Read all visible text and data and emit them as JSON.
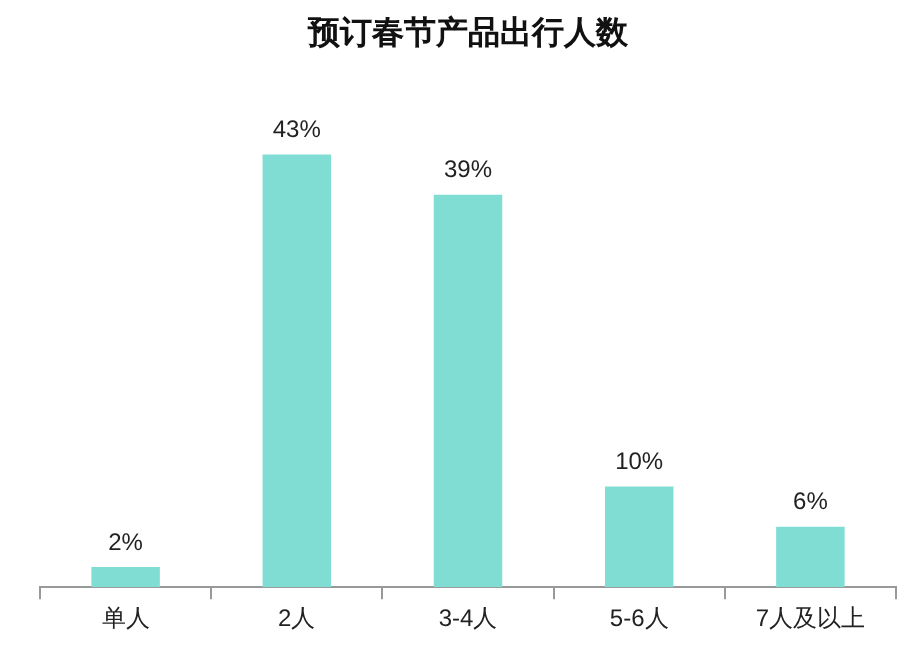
{
  "chart_data": {
    "type": "bar",
    "title": "预订春节产品出行人数",
    "categories": [
      "单人",
      "2人",
      "3-4人",
      "5-6人",
      "7人及以上"
    ],
    "values": [
      2,
      43,
      39,
      10,
      6
    ],
    "value_labels": [
      "2%",
      "43%",
      "39%",
      "10%",
      "6%"
    ],
    "color": "#80ddd4",
    "grid": false,
    "legend": false
  }
}
